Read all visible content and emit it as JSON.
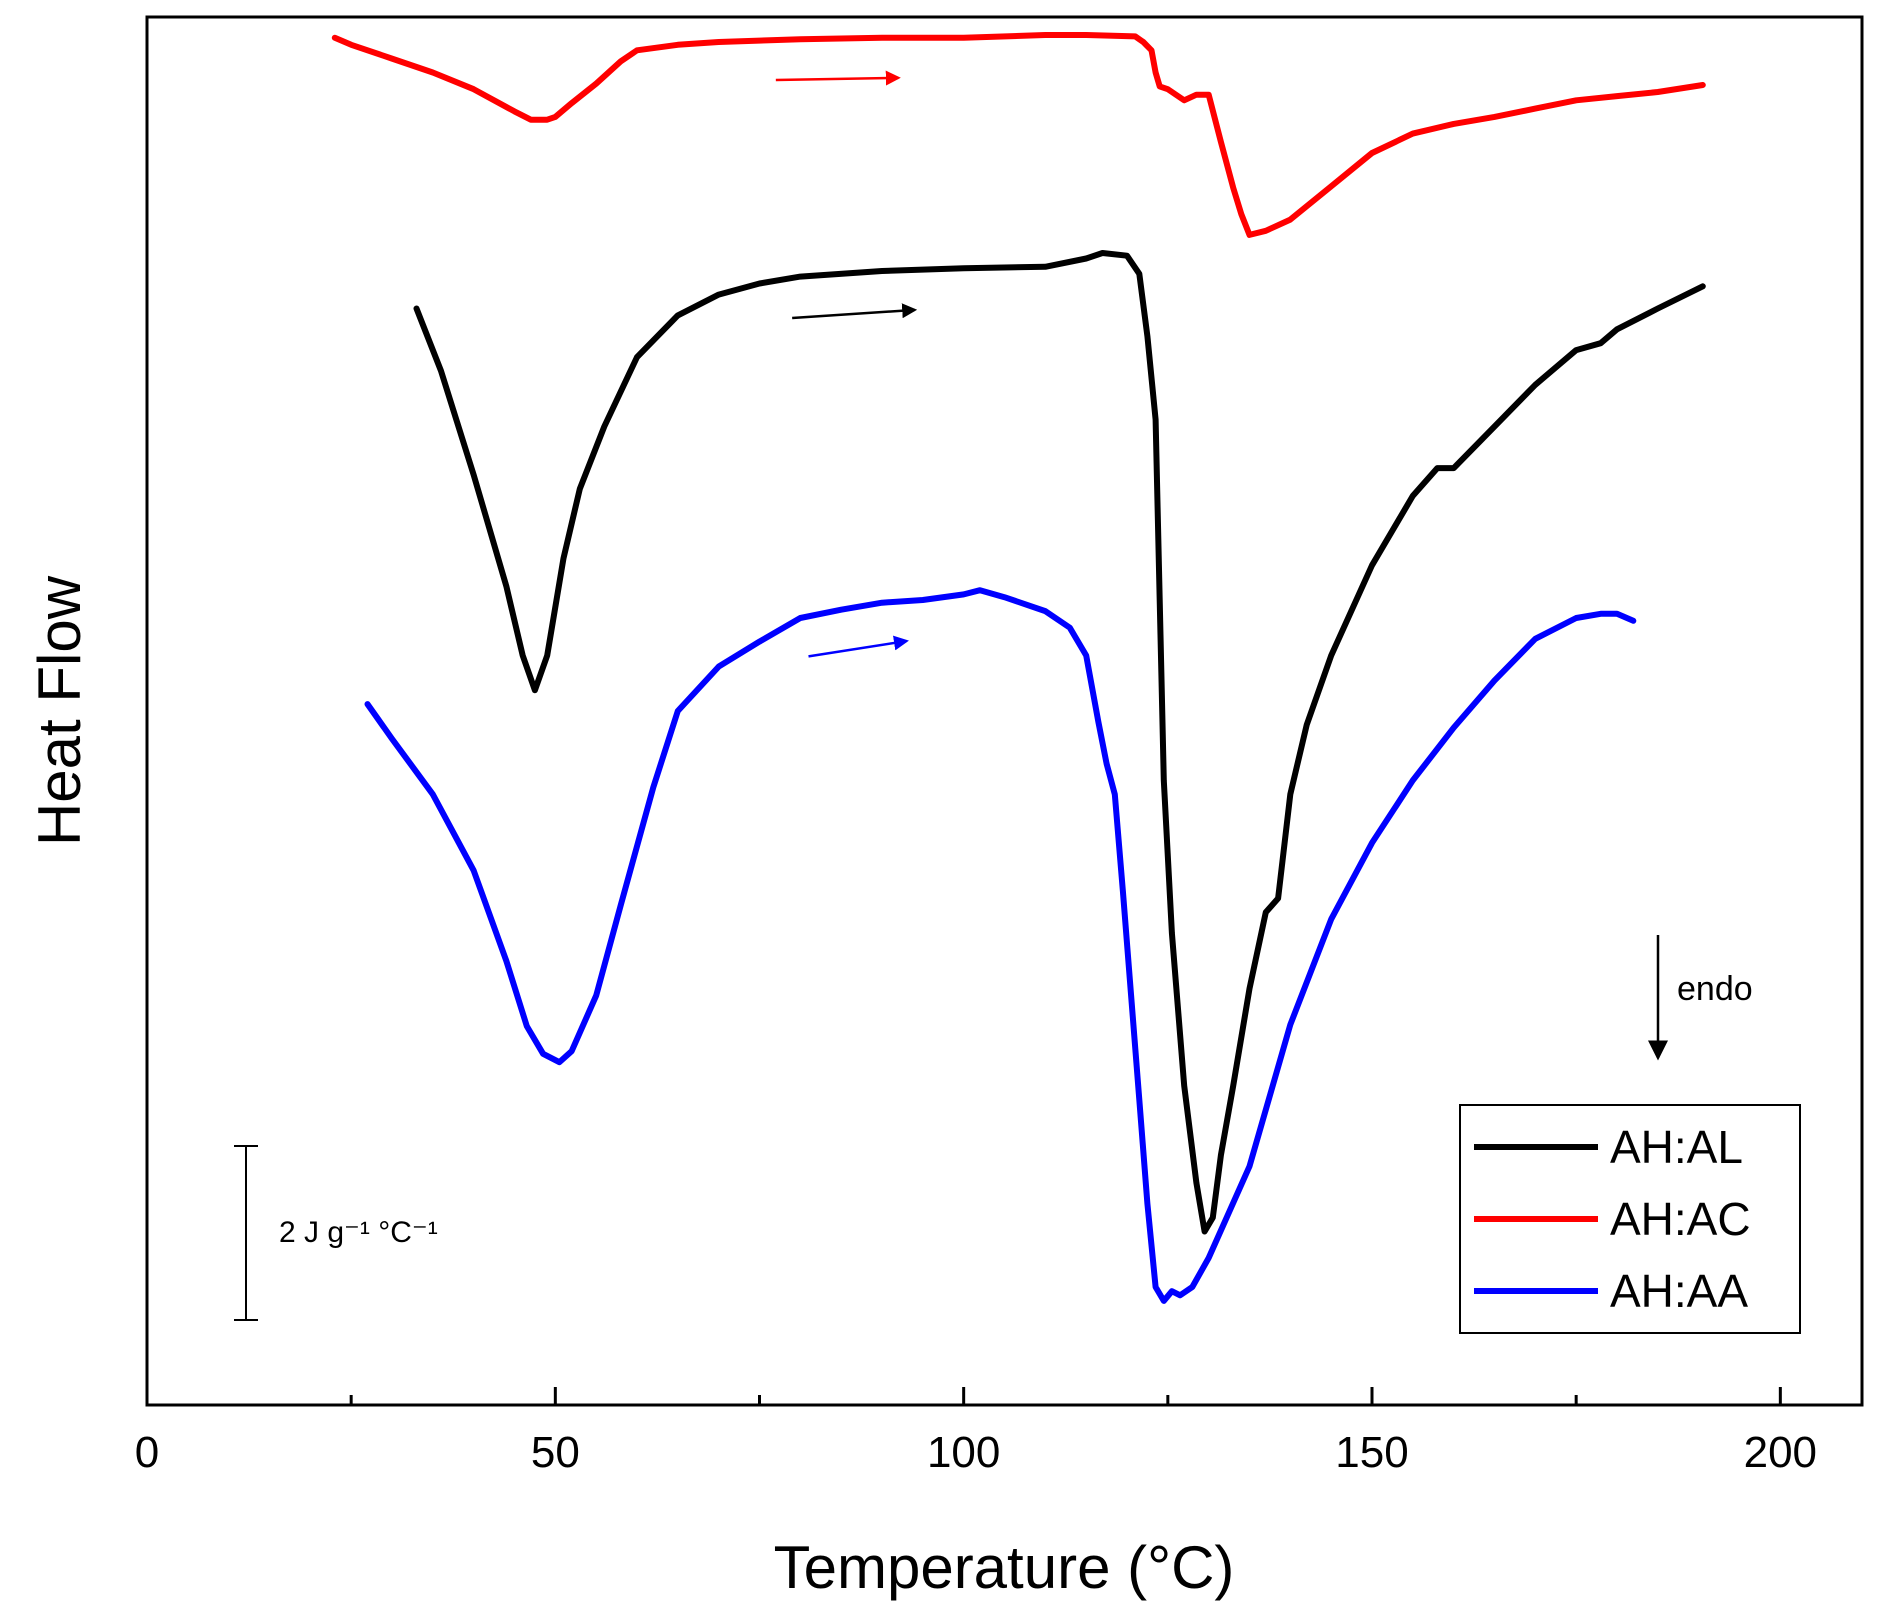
{
  "chart_data": {
    "type": "line",
    "title": "",
    "xlabel": "Temperature (°C)",
    "ylabel": "Heat Flow",
    "xlim": [
      0,
      210
    ],
    "ylim": [
      0,
      100
    ],
    "xticks": [
      0,
      50,
      100,
      150,
      200
    ],
    "yticks": [],
    "grid": false,
    "legend_position": "bottom-right",
    "colors": {
      "AH:AL": "#000000",
      "AH:AC": "#ff0000",
      "AH:AA": "#0000ff"
    },
    "series": [
      {
        "name": "AH:AL",
        "x": [
          33,
          36,
          40,
          44,
          46,
          47.5,
          49,
          51,
          53,
          56,
          60,
          65,
          70,
          75,
          80,
          90,
          100,
          110,
          115,
          117,
          120,
          121.5,
          122.5,
          123.5,
          124,
          124.5,
          125.5,
          127,
          128.5,
          129.5,
          130.5,
          131.5,
          133,
          135,
          137,
          138.5,
          140,
          142,
          145,
          150,
          155,
          158,
          160,
          165,
          170,
          175,
          178,
          180,
          185,
          190.5
        ],
        "y": [
          79,
          74.5,
          67,
          59,
          54,
          51.5,
          54,
          61,
          66,
          70.5,
          75.5,
          78.5,
          80,
          80.8,
          81.3,
          81.7,
          81.9,
          82,
          82.6,
          83,
          82.8,
          81.5,
          77,
          71,
          58,
          45,
          34,
          23,
          16,
          12.5,
          13.5,
          18,
          23,
          30,
          35.5,
          36.5,
          44,
          49,
          54,
          60.5,
          65.5,
          67.5,
          67.5,
          70.5,
          73.5,
          76,
          76.5,
          77.5,
          79,
          80.6
        ]
      },
      {
        "name": "AH:AC",
        "x": [
          23,
          25,
          30,
          35,
          40,
          45,
          47,
          49,
          50,
          52,
          55,
          58,
          60,
          65,
          70,
          80,
          90,
          100,
          110,
          115,
          121,
          122,
          123,
          123.5,
          124,
          125,
          127,
          128.5,
          130,
          131.5,
          133,
          134,
          135,
          137,
          140,
          145,
          150,
          155,
          160,
          165,
          170,
          175,
          180,
          185,
          190.5
        ],
        "y": [
          98.5,
          98,
          97,
          96,
          94.8,
          93.2,
          92.6,
          92.6,
          92.8,
          93.8,
          95.2,
          96.8,
          97.6,
          98,
          98.2,
          98.4,
          98.5,
          98.5,
          98.7,
          98.7,
          98.6,
          98.2,
          97.6,
          96,
          95,
          94.8,
          94,
          94.4,
          94.4,
          91,
          87.7,
          85.8,
          84.3,
          84.6,
          85.4,
          87.8,
          90.2,
          91.6,
          92.3,
          92.8,
          93.4,
          94,
          94.3,
          94.6,
          95.1
        ]
      },
      {
        "name": "AH:AA",
        "x": [
          27,
          30,
          35,
          40,
          44,
          46.5,
          48.5,
          50.5,
          52,
          55,
          58,
          62,
          65,
          70,
          75,
          80,
          85,
          90,
          95,
          100,
          102,
          105,
          110,
          113,
          115,
          116.5,
          117.5,
          118.5,
          119.5,
          120.5,
          121.5,
          122.5,
          123.5,
          124.5,
          125.5,
          126.5,
          128,
          130,
          135,
          140,
          145,
          150,
          155,
          160,
          165,
          170,
          175,
          178,
          180,
          182
        ],
        "y": [
          50.5,
          48,
          44,
          38.5,
          32,
          27.3,
          25.3,
          24.7,
          25.5,
          29.5,
          36,
          44.5,
          50,
          53.2,
          55,
          56.7,
          57.3,
          57.8,
          58,
          58.4,
          58.7,
          58.2,
          57.2,
          56,
          54,
          49.2,
          46.2,
          44,
          37,
          29.5,
          22,
          14.5,
          8.5,
          7.5,
          8.2,
          7.9,
          8.5,
          10.6,
          17.2,
          27.4,
          35,
          40.5,
          45,
          48.8,
          52.2,
          55.2,
          56.7,
          57,
          57,
          56.5
        ]
      }
    ],
    "legend": [
      "AH:AL",
      "AH:AC",
      "AH:AA"
    ],
    "annotations": {
      "endo_label": "endo",
      "scale_bar_label": "2 J g⁻¹ °C⁻¹",
      "heating_arrows": [
        {
          "series": "AH:AC",
          "x_start": 77,
          "x_end": 92
        },
        {
          "series": "AH:AL",
          "x_start": 79,
          "x_end": 94
        },
        {
          "series": "AH:AA",
          "x_start": 81,
          "x_end": 93
        }
      ]
    }
  }
}
